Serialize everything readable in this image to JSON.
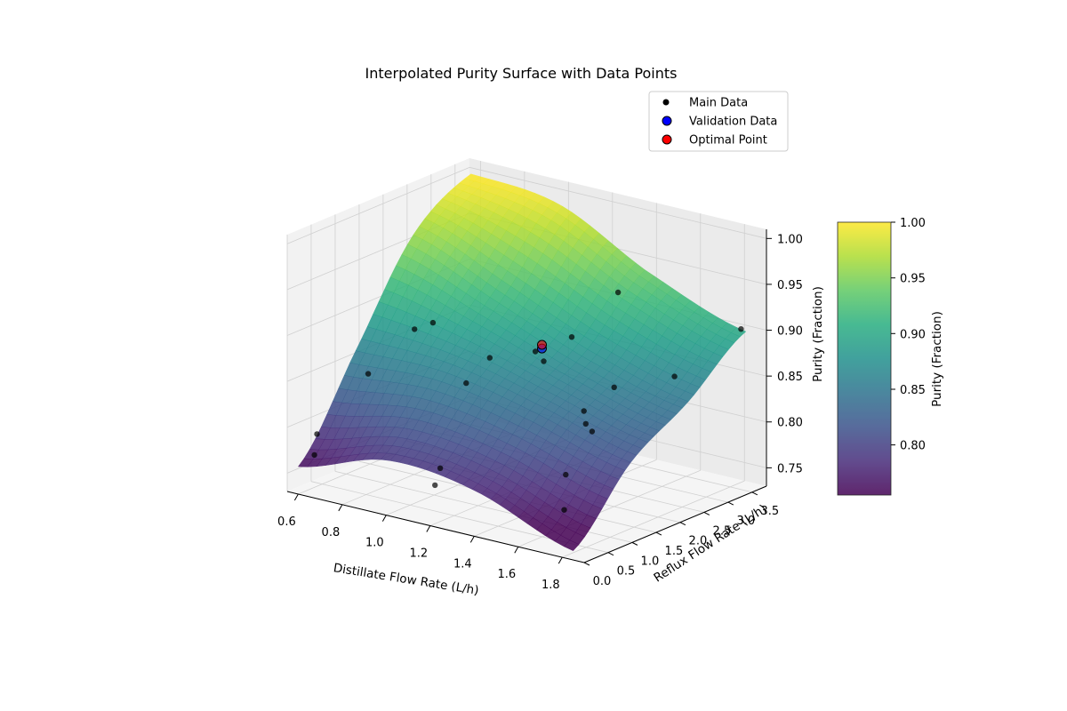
{
  "chart_data": {
    "type": "surface3d",
    "title": "Interpolated Purity Surface with Data Points",
    "xlabel": "Distillate Flow Rate (L/h)",
    "ylabel": "Reflux Flow Rate (L/h)",
    "zlabel": "Purity (Fraction)",
    "colorbar_label": "Purity (Fraction)",
    "colormap": "viridis",
    "xlim": [
      0.55,
      1.9
    ],
    "ylim": [
      0.0,
      3.8
    ],
    "zlim": [
      0.73,
      1.01
    ],
    "x_ticks": [
      "0.6",
      "0.8",
      "1.0",
      "1.2",
      "1.4",
      "1.6",
      "1.8"
    ],
    "x_tick_values": [
      0.6,
      0.8,
      1.0,
      1.2,
      1.4,
      1.6,
      1.8
    ],
    "y_ticks": [
      "0.0",
      "0.5",
      "1.0",
      "1.5",
      "2.0",
      "2.5",
      "3.0",
      "3.5"
    ],
    "y_tick_values": [
      0.0,
      0.5,
      1.0,
      1.5,
      2.0,
      2.5,
      3.0,
      3.5
    ],
    "z_ticks": [
      "0.75",
      "0.80",
      "0.85",
      "0.90",
      "0.95",
      "1.00"
    ],
    "z_tick_values": [
      0.75,
      0.8,
      0.85,
      0.9,
      0.95,
      1.0
    ],
    "colorbar_ticks": [
      "0.80",
      "0.85",
      "0.90",
      "0.95",
      "1.00"
    ],
    "colorbar_tick_values": [
      0.8,
      0.85,
      0.9,
      0.95,
      1.0
    ],
    "colorbar_range": [
      0.755,
      1.0
    ],
    "surface": {
      "x": [
        0.6,
        1.0,
        1.4,
        1.85
      ],
      "y": [
        0.0,
        1.2,
        2.4,
        3.6
      ],
      "z": [
        [
          0.76,
          0.86,
          0.96,
          1.0
        ],
        [
          0.79,
          0.86,
          0.92,
          0.99
        ],
        [
          0.78,
          0.84,
          0.88,
          0.94
        ],
        [
          0.74,
          0.81,
          0.85,
          0.9
        ]
      ]
    },
    "legend": {
      "placement": "upper-right",
      "entries": [
        "Main Data",
        "Validation Data",
        "Optimal Point"
      ]
    },
    "series": [
      {
        "name": "Main Data",
        "color": "#000000",
        "points": [
          {
            "x": 0.62,
            "y": 0.3,
            "z": 0.79
          },
          {
            "x": 0.63,
            "y": 0.2,
            "z": 0.77
          },
          {
            "x": 0.78,
            "y": 1.6,
            "z": 0.885
          },
          {
            "x": 0.82,
            "y": 1.8,
            "z": 0.89
          },
          {
            "x": 0.7,
            "y": 1.0,
            "z": 0.845
          },
          {
            "x": 1.18,
            "y": 0.3,
            "z": 0.785
          },
          {
            "x": 1.2,
            "y": 0.1,
            "z": 0.772
          },
          {
            "x": 1.08,
            "y": 1.3,
            "z": 0.85
          },
          {
            "x": 1.1,
            "y": 1.7,
            "z": 0.87
          },
          {
            "x": 1.22,
            "y": 2.1,
            "z": 0.875
          },
          {
            "x": 1.28,
            "y": 2.0,
            "z": 0.87
          },
          {
            "x": 1.32,
            "y": 2.4,
            "z": 0.89
          },
          {
            "x": 1.4,
            "y": 3.0,
            "z": 0.93
          },
          {
            "x": 1.55,
            "y": 1.6,
            "z": 0.84
          },
          {
            "x": 1.58,
            "y": 1.5,
            "z": 0.83
          },
          {
            "x": 1.62,
            "y": 1.45,
            "z": 0.825
          },
          {
            "x": 1.6,
            "y": 2.0,
            "z": 0.86
          },
          {
            "x": 1.7,
            "y": 2.8,
            "z": 0.86
          },
          {
            "x": 1.85,
            "y": 3.5,
            "z": 0.905
          },
          {
            "x": 1.62,
            "y": 0.9,
            "z": 0.79
          },
          {
            "x": 1.7,
            "y": 0.5,
            "z": 0.765
          }
        ]
      },
      {
        "name": "Validation Data",
        "color": "#0000ff",
        "points": [
          {
            "x": 1.25,
            "y": 2.1,
            "z": 0.88
          }
        ]
      },
      {
        "name": "Optimal Point",
        "color": "#ff0000",
        "points": [
          {
            "x": 1.25,
            "y": 2.1,
            "z": 0.884
          }
        ]
      }
    ]
  }
}
